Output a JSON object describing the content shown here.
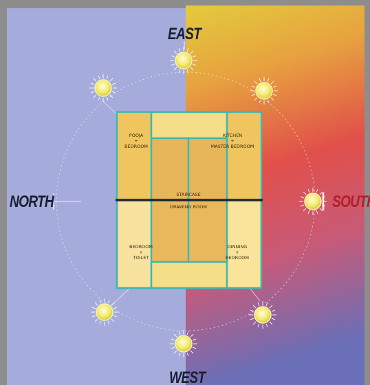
{
  "compass": {
    "east": "EAST",
    "west": "WEST",
    "north": "NORTH",
    "south": "SOUTH"
  },
  "rooms": {
    "pooja": {
      "line1": "POOJA",
      "plus": "+",
      "line2": "BEDROOM"
    },
    "kitchen": {
      "line1": "KITCHEN",
      "plus": "+",
      "line2": "MASTER BEDROOM"
    },
    "staircase": "STAIRCASE",
    "drawing_room": "DRAWING ROOM",
    "bedroom_toilet": {
      "line1": "BEDROOM",
      "plus": "+",
      "line2": "TOILET"
    },
    "dinning": {
      "line1": "DINNING",
      "plus": "+",
      "line2": "BEDROOM"
    }
  },
  "colors": {
    "north_background": "#a5acdb",
    "south_gradient_top": "#e2c83a",
    "south_gradient_mid": "#e0504a",
    "south_gradient_bottom": "#6a6fb6",
    "plan_wall": "#3fb6b0",
    "plan_room_light": "#f3d57a",
    "plan_room_dark": "#e9b755",
    "divider": "#1c2630",
    "sun": "#f1ec6a",
    "south_label": "#b0202a",
    "north_label": "#1a2030"
  },
  "icons": [
    "sun-icon"
  ]
}
